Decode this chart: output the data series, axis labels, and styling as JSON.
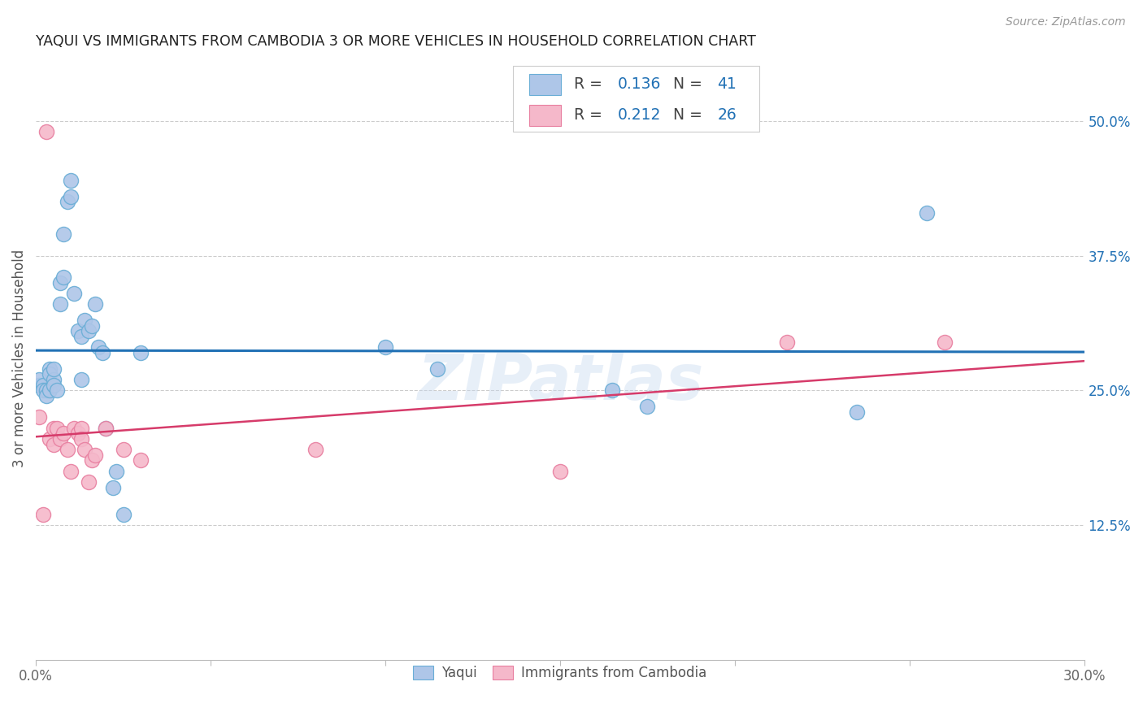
{
  "title": "YAQUI VS IMMIGRANTS FROM CAMBODIA 3 OR MORE VEHICLES IN HOUSEHOLD CORRELATION CHART",
  "source": "Source: ZipAtlas.com",
  "ylabel": "3 or more Vehicles in Household",
  "xmin": 0.0,
  "xmax": 0.3,
  "ymin": 0.0,
  "ymax": 0.56,
  "xticks": [
    0.0,
    0.05,
    0.1,
    0.15,
    0.2,
    0.25,
    0.3
  ],
  "xticklabels": [
    "0.0%",
    "",
    "",
    "",
    "",
    "",
    "30.0%"
  ],
  "yticks_right": [
    0.125,
    0.25,
    0.375,
    0.5
  ],
  "ytick_labels_right": [
    "12.5%",
    "25.0%",
    "37.5%",
    "50.0%"
  ],
  "series1_label": "Yaqui",
  "series2_label": "Immigrants from Cambodia",
  "series1_color": "#aec6e8",
  "series2_color": "#f5b8ca",
  "series1_edge_color": "#6aaed6",
  "series2_edge_color": "#e87fa0",
  "line1_color": "#2171b5",
  "line2_color": "#d63b6a",
  "watermark": "ZIPatlas",
  "r1": "0.136",
  "n1": "41",
  "r2": "0.212",
  "n2": "26",
  "yaqui_x": [
    0.001,
    0.001,
    0.002,
    0.002,
    0.003,
    0.003,
    0.004,
    0.004,
    0.004,
    0.005,
    0.005,
    0.005,
    0.006,
    0.007,
    0.007,
    0.008,
    0.008,
    0.009,
    0.01,
    0.01,
    0.011,
    0.012,
    0.013,
    0.013,
    0.014,
    0.015,
    0.016,
    0.017,
    0.018,
    0.019,
    0.02,
    0.022,
    0.023,
    0.025,
    0.03,
    0.1,
    0.115,
    0.165,
    0.175,
    0.235,
    0.255
  ],
  "yaqui_y": [
    0.255,
    0.26,
    0.255,
    0.25,
    0.25,
    0.245,
    0.27,
    0.265,
    0.25,
    0.26,
    0.27,
    0.255,
    0.25,
    0.33,
    0.35,
    0.355,
    0.395,
    0.425,
    0.43,
    0.445,
    0.34,
    0.305,
    0.3,
    0.26,
    0.315,
    0.305,
    0.31,
    0.33,
    0.29,
    0.285,
    0.215,
    0.16,
    0.175,
    0.135,
    0.285,
    0.29,
    0.27,
    0.25,
    0.235,
    0.23,
    0.415
  ],
  "camb_x": [
    0.001,
    0.002,
    0.003,
    0.004,
    0.005,
    0.005,
    0.006,
    0.007,
    0.008,
    0.009,
    0.01,
    0.011,
    0.012,
    0.013,
    0.013,
    0.014,
    0.015,
    0.016,
    0.017,
    0.02,
    0.025,
    0.03,
    0.08,
    0.15,
    0.215,
    0.26
  ],
  "camb_y": [
    0.225,
    0.135,
    0.49,
    0.205,
    0.2,
    0.215,
    0.215,
    0.205,
    0.21,
    0.195,
    0.175,
    0.215,
    0.21,
    0.215,
    0.205,
    0.195,
    0.165,
    0.185,
    0.19,
    0.215,
    0.195,
    0.185,
    0.195,
    0.175,
    0.295,
    0.295
  ]
}
